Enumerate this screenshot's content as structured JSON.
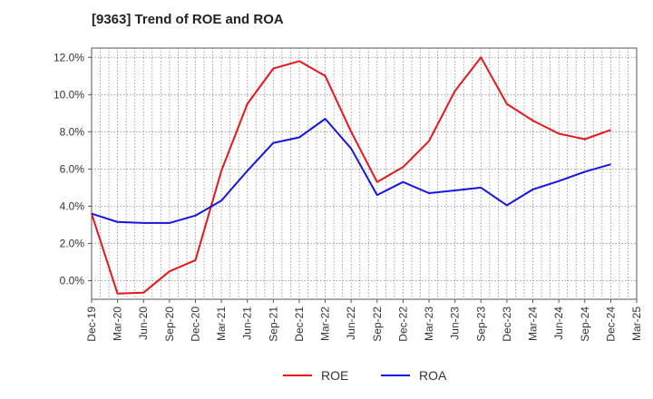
{
  "chart_data": {
    "type": "line",
    "title": "[9363]  Trend of ROE and ROA",
    "xlabel": "",
    "ylabel": "",
    "x": [
      "Dec-19",
      "Mar-20",
      "Jun-20",
      "Sep-20",
      "Dec-20",
      "Mar-21",
      "Jun-21",
      "Sep-21",
      "Dec-21",
      "Mar-22",
      "Jun-22",
      "Sep-22",
      "Dec-22",
      "Mar-23",
      "Jun-23",
      "Sep-23",
      "Dec-23",
      "Mar-24",
      "Jun-24",
      "Sep-24",
      "Dec-24",
      "Mar-25"
    ],
    "yticks": [
      "0.0%",
      "2.0%",
      "4.0%",
      "6.0%",
      "8.0%",
      "10.0%",
      "12.0%"
    ],
    "ylim": [
      -1.0,
      12.5
    ],
    "grid": true,
    "legend_position": "bottom-center",
    "series": [
      {
        "name": "ROE",
        "color": "#e8161b",
        "values": [
          3.6,
          -0.7,
          -0.65,
          0.5,
          1.1,
          5.9,
          9.5,
          11.4,
          11.8,
          11.0,
          8.0,
          5.3,
          6.1,
          7.5,
          10.2,
          12.0,
          9.5,
          8.6,
          7.9,
          7.6,
          8.1,
          null
        ]
      },
      {
        "name": "ROA",
        "color": "#1515e0",
        "values": [
          3.6,
          3.15,
          3.1,
          3.1,
          3.5,
          4.3,
          5.9,
          7.4,
          7.7,
          8.7,
          7.1,
          4.6,
          5.3,
          4.7,
          4.85,
          5.0,
          4.05,
          4.9,
          5.35,
          5.85,
          6.25,
          null
        ]
      }
    ]
  }
}
